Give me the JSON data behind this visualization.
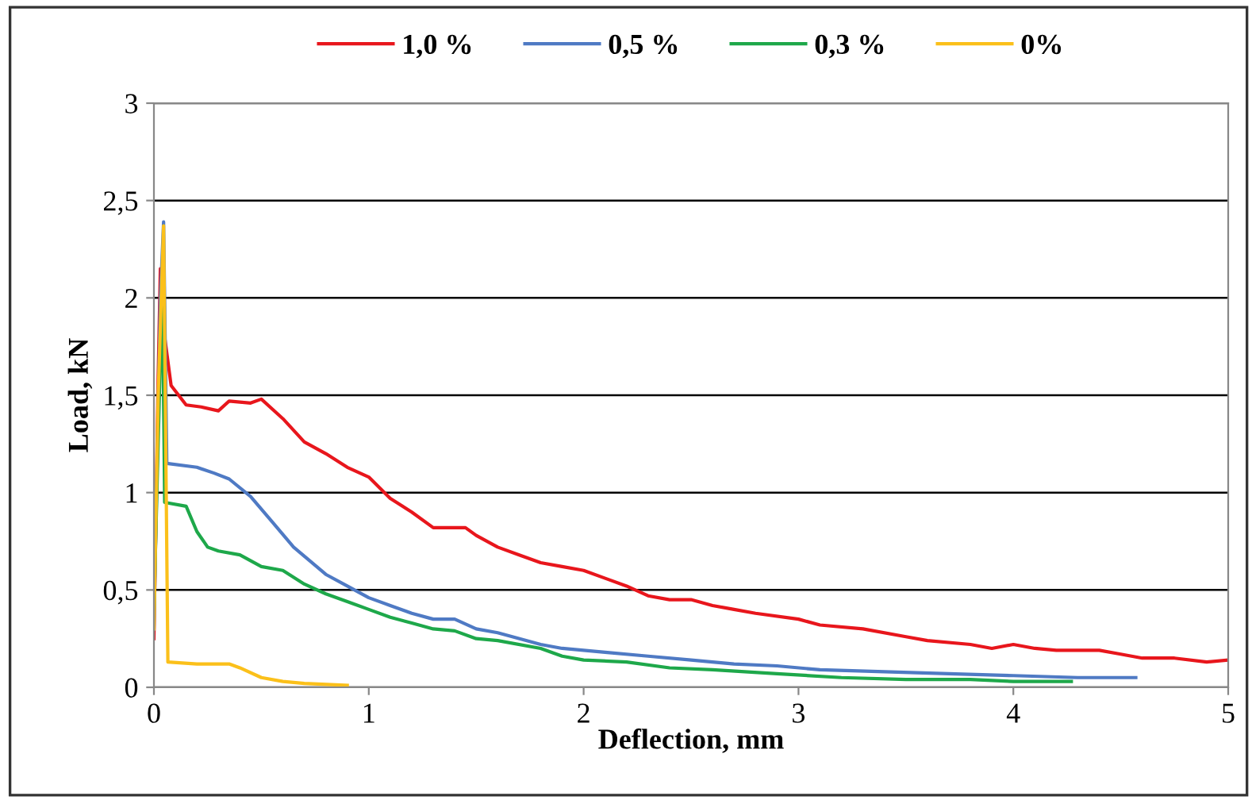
{
  "chart_data": {
    "type": "line",
    "xlabel": "Deflection, mm",
    "ylabel": "Load, kN",
    "xlim": [
      0,
      5
    ],
    "ylim": [
      0,
      3
    ],
    "xticks": [
      0,
      1,
      2,
      3,
      4,
      5
    ],
    "yticks": [
      0,
      {
        "value": 0.5,
        "label": "0,5"
      },
      1,
      {
        "value": 1.5,
        "label": "1,5"
      },
      2,
      {
        "value": 2.5,
        "label": "2,5"
      },
      3
    ],
    "grid": "y",
    "legend": "top",
    "marker": "none",
    "line_style": "solid",
    "series": [
      {
        "name": "1,0 %",
        "color": "#e8161c",
        "x": [
          0,
          0.02,
          0.03,
          0.05,
          0.08,
          0.15,
          0.22,
          0.3,
          0.35,
          0.45,
          0.5,
          0.6,
          0.7,
          0.8,
          0.9,
          1.0,
          1.1,
          1.2,
          1.3,
          1.45,
          1.5,
          1.6,
          1.7,
          1.8,
          1.9,
          2.0,
          2.1,
          2.2,
          2.3,
          2.4,
          2.5,
          2.6,
          2.7,
          2.8,
          3.0,
          3.1,
          3.3,
          3.5,
          3.6,
          3.8,
          3.9,
          4.0,
          4.1,
          4.2,
          4.4,
          4.5,
          4.6,
          4.75,
          4.9,
          5.0
        ],
        "values": [
          0.25,
          1.6,
          2.15,
          1.8,
          1.55,
          1.45,
          1.44,
          1.42,
          1.47,
          1.46,
          1.48,
          1.38,
          1.26,
          1.2,
          1.13,
          1.08,
          0.97,
          0.9,
          0.82,
          0.82,
          0.78,
          0.72,
          0.68,
          0.64,
          0.62,
          0.6,
          0.56,
          0.52,
          0.47,
          0.45,
          0.45,
          0.42,
          0.4,
          0.38,
          0.35,
          0.32,
          0.3,
          0.26,
          0.24,
          0.22,
          0.2,
          0.22,
          0.2,
          0.19,
          0.19,
          0.17,
          0.15,
          0.15,
          0.13,
          0.14
        ]
      },
      {
        "name": "0,5 %",
        "color": "#4f7ac4",
        "x": [
          0,
          0.03,
          0.045,
          0.06,
          0.2,
          0.28,
          0.35,
          0.45,
          0.55,
          0.65,
          0.8,
          0.9,
          1.0,
          1.1,
          1.2,
          1.3,
          1.4,
          1.5,
          1.6,
          1.8,
          1.9,
          2.1,
          2.3,
          2.5,
          2.7,
          2.9,
          3.1,
          3.4,
          3.7,
          4.0,
          4.3,
          4.57
        ],
        "values": [
          0.3,
          2.0,
          2.39,
          1.15,
          1.13,
          1.1,
          1.07,
          0.98,
          0.85,
          0.72,
          0.58,
          0.52,
          0.46,
          0.42,
          0.38,
          0.35,
          0.35,
          0.3,
          0.28,
          0.22,
          0.2,
          0.18,
          0.16,
          0.14,
          0.12,
          0.11,
          0.09,
          0.08,
          0.07,
          0.06,
          0.05,
          0.05
        ]
      },
      {
        "name": "0,3 %",
        "color": "#1ea84a",
        "x": [
          0,
          0.03,
          0.04,
          0.05,
          0.15,
          0.2,
          0.25,
          0.3,
          0.4,
          0.5,
          0.6,
          0.7,
          0.8,
          0.9,
          1.0,
          1.1,
          1.2,
          1.3,
          1.4,
          1.5,
          1.6,
          1.8,
          1.9,
          2.0,
          2.2,
          2.4,
          2.6,
          2.9,
          3.2,
          3.5,
          3.8,
          4.0,
          4.27
        ],
        "values": [
          0.4,
          1.7,
          2.0,
          0.95,
          0.93,
          0.8,
          0.72,
          0.7,
          0.68,
          0.62,
          0.6,
          0.53,
          0.48,
          0.44,
          0.4,
          0.36,
          0.33,
          0.3,
          0.29,
          0.25,
          0.24,
          0.2,
          0.16,
          0.14,
          0.13,
          0.1,
          0.09,
          0.07,
          0.05,
          0.04,
          0.04,
          0.03,
          0.03
        ]
      },
      {
        "name": "0%",
        "color": "#fbc01a",
        "x": [
          0,
          0.02,
          0.045,
          0.065,
          0.2,
          0.35,
          0.4,
          0.5,
          0.6,
          0.7,
          0.9
        ],
        "values": [
          0.3,
          1.5,
          2.37,
          0.13,
          0.12,
          0.12,
          0.1,
          0.05,
          0.03,
          0.02,
          0.01
        ]
      }
    ]
  }
}
